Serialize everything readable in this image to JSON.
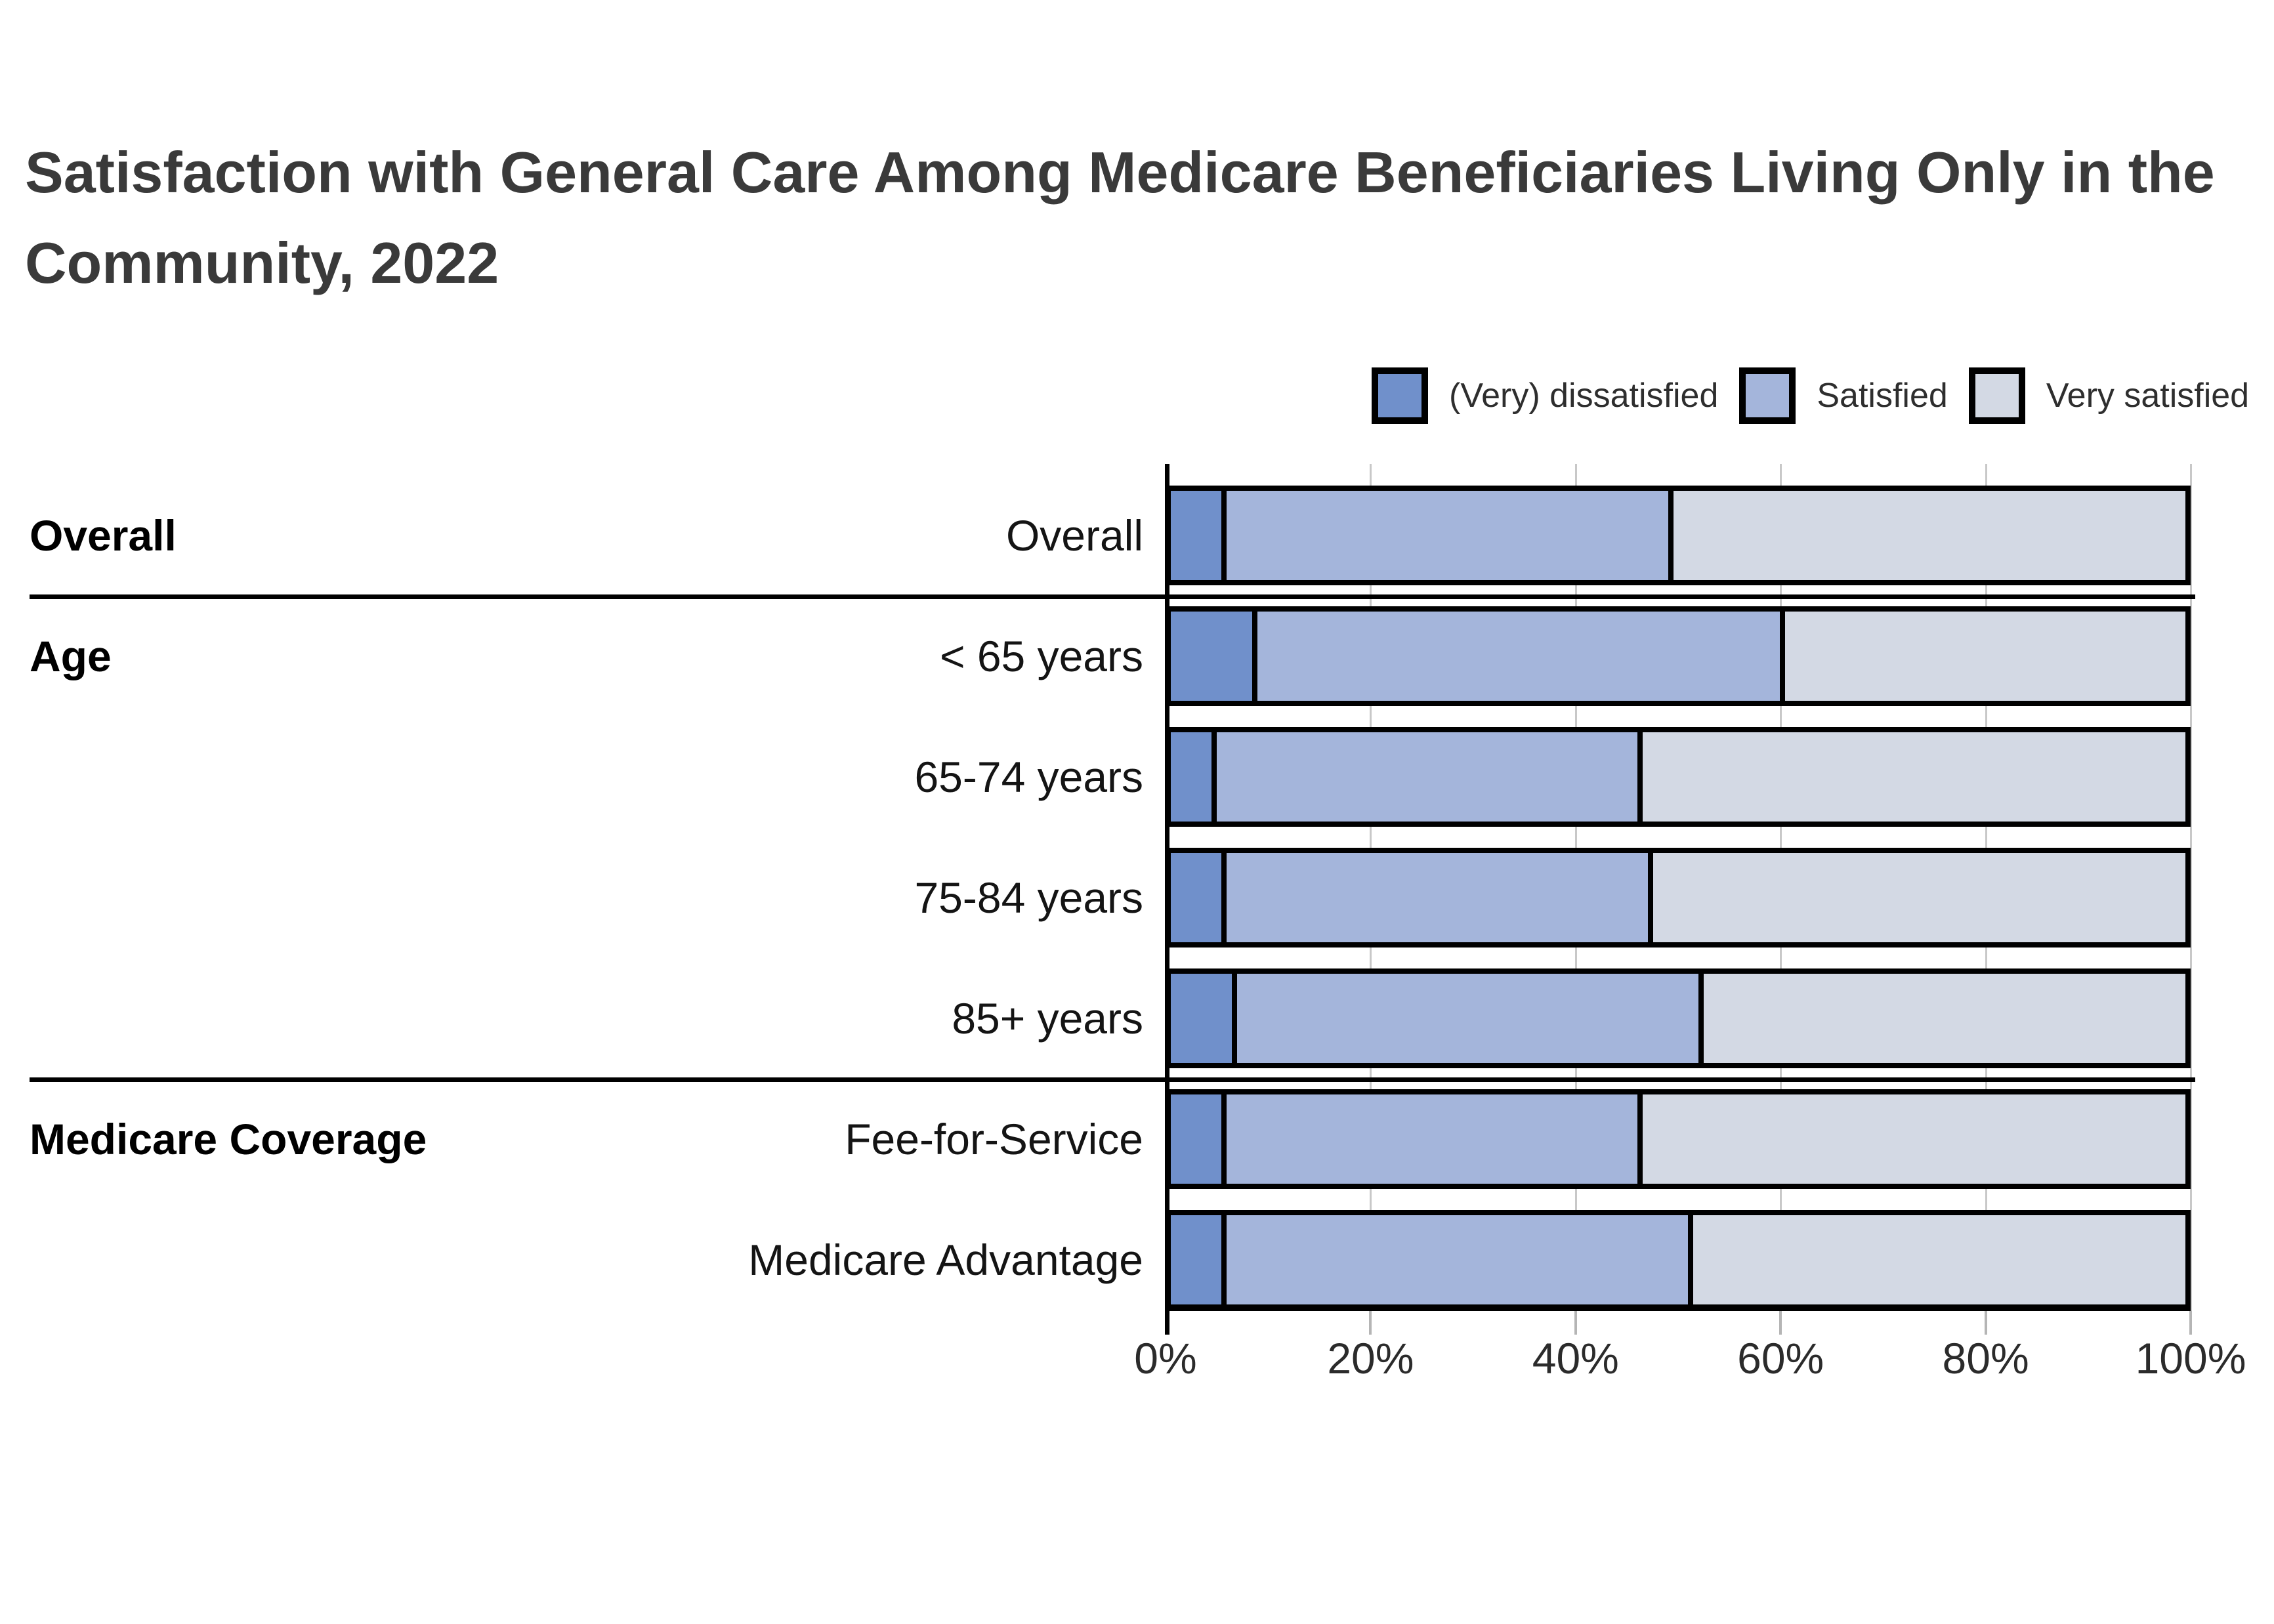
{
  "title": {
    "line1": "Satisfaction with General Care Among Medicare Beneficiaries Living Only in the",
    "line2": "Community, 2022"
  },
  "chart_data": {
    "type": "bar",
    "stacked": true,
    "orientation": "horizontal",
    "title": "Satisfaction with General Care Among Medicare Beneficiaries Living Only in the Community, 2022",
    "categories": [
      "Overall",
      "< 65 years",
      "65-74 years",
      "75-84 years",
      "85+ years",
      "Fee-for-Service",
      "Medicare Advantage"
    ],
    "series": [
      {
        "name": "(Very) dissatisfied",
        "color": "#7090CB",
        "values": [
          5,
          8,
          4,
          5,
          6,
          5,
          5
        ]
      },
      {
        "name": "Satisfied",
        "color": "#A4B5DB",
        "values": [
          44,
          52,
          42,
          42,
          46,
          41,
          46
        ]
      },
      {
        "name": "Very satisfied",
        "color": "#D3D9E4",
        "values": [
          51,
          40,
          54,
          53,
          48,
          54,
          49
        ]
      }
    ],
    "sections": [
      {
        "label": "Overall",
        "rows": [
          0
        ]
      },
      {
        "label": "Age",
        "rows": [
          1,
          2,
          3,
          4
        ]
      },
      {
        "label": "Medicare Coverage",
        "rows": [
          5,
          6
        ]
      }
    ],
    "x_axis": {
      "range": [
        0,
        100
      ],
      "tick_values": [
        0,
        20,
        40,
        60,
        80,
        100
      ],
      "tick_labels": [
        "0%",
        "20%",
        "40%",
        "60%",
        "80%",
        "100%"
      ]
    },
    "legend_position": "top-right",
    "gridlines": true
  }
}
